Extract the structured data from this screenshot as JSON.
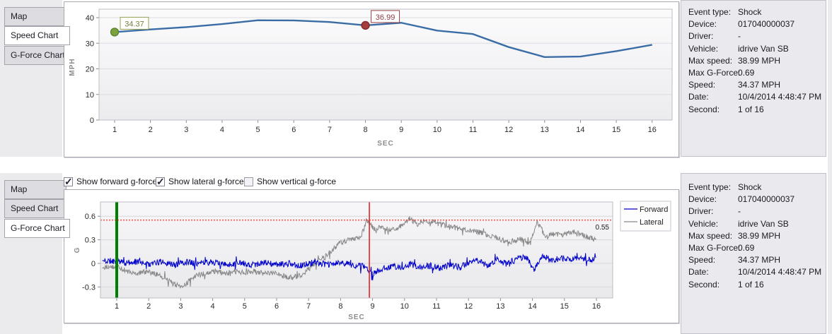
{
  "tabs": [
    {
      "label": "Map"
    },
    {
      "label": "Speed Chart"
    },
    {
      "label": "G-Force Chart"
    }
  ],
  "top_section": {
    "active_tab": "Speed Chart"
  },
  "bottom_section": {
    "active_tab": "G-Force Chart"
  },
  "event_info": {
    "rows": [
      {
        "label": "Event type:",
        "value": "Shock"
      },
      {
        "label": "Device:",
        "value": "017040000037"
      },
      {
        "label": "Driver:",
        "value": "-"
      },
      {
        "label": "Vehicle:",
        "value": "idrive Van SB"
      },
      {
        "label": "Max speed:",
        "value": "38.99 MPH"
      },
      {
        "label": "Max G-Force:",
        "value": "0.69"
      },
      {
        "label": "Speed:",
        "value": "34.37 MPH"
      },
      {
        "label": "Date:",
        "value": "10/4/2014 4:48:47 PM"
      },
      {
        "label": "Second:",
        "value": "1 of 16"
      }
    ]
  },
  "gforce_controls": {
    "checkboxes": [
      {
        "label": "Show forward g-force",
        "checked": true
      },
      {
        "label": "Show lateral g-force",
        "checked": true
      },
      {
        "label": "Show vertical g-force",
        "checked": false
      }
    ]
  },
  "chart_data": [
    {
      "id": "speed",
      "type": "line",
      "title": "Speed Chart",
      "xlabel": "SEC",
      "ylabel": "MPH",
      "x": [
        1,
        2,
        3,
        4,
        5,
        6,
        7,
        8,
        9,
        10,
        11,
        12,
        13,
        14,
        15,
        16
      ],
      "values": [
        34.37,
        35.4,
        36.3,
        37.5,
        38.99,
        38.9,
        38.3,
        36.99,
        38.0,
        34.95,
        33.6,
        28.5,
        24.6,
        24.8,
        26.9,
        29.4
      ],
      "ylim": [
        0,
        43.3
      ],
      "yticks": [
        0,
        10,
        20,
        30,
        40
      ],
      "grid": true,
      "legend_position": "none",
      "line_color": "#3a6da6",
      "markers": [
        {
          "x": 1,
          "value": 34.37,
          "label": "34.37",
          "dot_color": "#7ba23f",
          "dot_border": "#5d7f2b",
          "box_border": "#93a254",
          "text_color": "#75803a"
        },
        {
          "x": 8,
          "value": 36.99,
          "label": "36.99",
          "dot_color": "#a63c3c",
          "dot_border": "#7d2727",
          "box_border": "#9b4045",
          "text_color": "#8d3a3f"
        }
      ]
    },
    {
      "id": "gforce",
      "type": "line",
      "title": "G-Force Chart",
      "xlabel": "SEC",
      "ylabel": "G",
      "xticks": [
        1,
        2,
        3,
        4,
        5,
        6,
        7,
        8,
        9,
        10,
        11,
        12,
        13,
        14,
        15,
        16
      ],
      "ylim": [
        -0.44,
        0.78
      ],
      "yticks": [
        -0.3,
        0,
        0.3,
        0.6
      ],
      "grid": true,
      "legend_position": "top-right",
      "threshold": {
        "value": 0.55,
        "label": "0.55",
        "color": "#ff0000"
      },
      "event_start_line": {
        "x": 1,
        "color": "#008000"
      },
      "cursor_line": {
        "x": 8.9,
        "color": "#e01818"
      },
      "legend": [
        {
          "name": "Forward",
          "color": "#0000cc"
        },
        {
          "name": "Lateral",
          "color": "#888888"
        }
      ],
      "series": [
        {
          "name": "Lateral",
          "color": "#888888",
          "noise_amp": 0.035,
          "seed": 29,
          "keypoints": [
            [
              1,
              -0.04
            ],
            [
              1.3,
              -0.1
            ],
            [
              1.6,
              -0.13
            ],
            [
              1.9,
              -0.11
            ],
            [
              2.2,
              -0.13
            ],
            [
              2.5,
              -0.18
            ],
            [
              2.8,
              -0.27
            ],
            [
              3.0,
              -0.29
            ],
            [
              3.2,
              -0.25
            ],
            [
              3.5,
              -0.16
            ],
            [
              3.8,
              -0.12
            ],
            [
              4.1,
              -0.1
            ],
            [
              4.4,
              -0.13
            ],
            [
              4.7,
              -0.1
            ],
            [
              5.0,
              -0.12
            ],
            [
              5.3,
              -0.1
            ],
            [
              5.6,
              -0.13
            ],
            [
              5.9,
              -0.12
            ],
            [
              6.2,
              -0.16
            ],
            [
              6.5,
              -0.18
            ],
            [
              6.8,
              -0.14
            ],
            [
              7.1,
              -0.04
            ],
            [
              7.4,
              0.05
            ],
            [
              7.7,
              0.15
            ],
            [
              8.0,
              0.27
            ],
            [
              8.3,
              0.3
            ],
            [
              8.6,
              0.32
            ],
            [
              8.85,
              0.55
            ],
            [
              9.05,
              0.43
            ],
            [
              9.3,
              0.46
            ],
            [
              9.6,
              0.42
            ],
            [
              9.9,
              0.48
            ],
            [
              10.15,
              0.57
            ],
            [
              10.4,
              0.5
            ],
            [
              10.65,
              0.55
            ],
            [
              10.9,
              0.52
            ],
            [
              11.2,
              0.49
            ],
            [
              11.5,
              0.46
            ],
            [
              11.8,
              0.44
            ],
            [
              12.1,
              0.41
            ],
            [
              12.4,
              0.39
            ],
            [
              12.7,
              0.34
            ],
            [
              13.0,
              0.31
            ],
            [
              13.3,
              0.27
            ],
            [
              13.6,
              0.31
            ],
            [
              13.9,
              0.26
            ],
            [
              14.15,
              0.53
            ],
            [
              14.4,
              0.35
            ],
            [
              14.7,
              0.38
            ],
            [
              15.0,
              0.36
            ],
            [
              15.3,
              0.4
            ],
            [
              15.6,
              0.35
            ],
            [
              16,
              0.3
            ]
          ]
        },
        {
          "name": "Forward",
          "color": "#0000cc",
          "noise_amp": 0.04,
          "seed": 11,
          "keypoints": [
            [
              1,
              0.03
            ],
            [
              1.3,
              0.0
            ],
            [
              1.7,
              0.03
            ],
            [
              2.0,
              -0.01
            ],
            [
              2.4,
              0.02
            ],
            [
              2.8,
              -0.02
            ],
            [
              3.2,
              0.02
            ],
            [
              3.6,
              0.0
            ],
            [
              4.0,
              0.02
            ],
            [
              4.4,
              -0.02
            ],
            [
              4.8,
              0.01
            ],
            [
              5.2,
              -0.02
            ],
            [
              5.6,
              0.01
            ],
            [
              6.0,
              -0.02
            ],
            [
              6.4,
              0.0
            ],
            [
              6.8,
              -0.03
            ],
            [
              7.2,
              0.02
            ],
            [
              7.6,
              -0.02
            ],
            [
              8.0,
              0.01
            ],
            [
              8.4,
              -0.02
            ],
            [
              8.7,
              -0.04
            ],
            [
              9.0,
              -0.13
            ],
            [
              9.3,
              -0.07
            ],
            [
              9.6,
              -0.03
            ],
            [
              9.9,
              -0.06
            ],
            [
              10.2,
              -0.01
            ],
            [
              10.5,
              -0.05
            ],
            [
              10.8,
              -0.03
            ],
            [
              11.1,
              -0.06
            ],
            [
              11.4,
              -0.02
            ],
            [
              11.7,
              -0.05
            ],
            [
              12.0,
              0.0
            ],
            [
              12.3,
              0.04
            ],
            [
              12.6,
              -0.03
            ],
            [
              12.9,
              0.05
            ],
            [
              13.2,
              -0.01
            ],
            [
              13.5,
              0.06
            ],
            [
              13.8,
              0.09
            ],
            [
              14.05,
              -0.09
            ],
            [
              14.3,
              0.1
            ],
            [
              14.6,
              0.04
            ],
            [
              14.9,
              0.07
            ],
            [
              15.2,
              0.04
            ],
            [
              15.5,
              0.07
            ],
            [
              15.8,
              0.05
            ],
            [
              16,
              0.06
            ]
          ]
        }
      ]
    }
  ]
}
